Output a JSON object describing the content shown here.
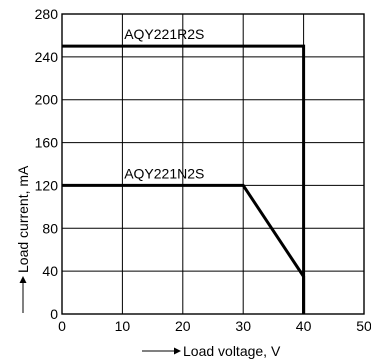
{
  "chart_data": {
    "type": "line",
    "xlabel": "Load voltage, V",
    "ylabel": "Load current, mA",
    "xlim": [
      0,
      50
    ],
    "ylim": [
      0,
      280
    ],
    "x_ticks": [
      0,
      10,
      20,
      30,
      40,
      50
    ],
    "y_ticks": [
      0,
      40,
      80,
      120,
      160,
      200,
      240,
      280
    ],
    "grid": true,
    "series": [
      {
        "name": "AQY221R2S",
        "points": [
          [
            0,
            250
          ],
          [
            40,
            250
          ],
          [
            40,
            0
          ]
        ]
      },
      {
        "name": "AQY221N2S",
        "points": [
          [
            0,
            120
          ],
          [
            30,
            120
          ],
          [
            40,
            35
          ],
          [
            40,
            0
          ]
        ]
      }
    ],
    "colors": {
      "line": "#000000",
      "grid": "#000000"
    }
  }
}
